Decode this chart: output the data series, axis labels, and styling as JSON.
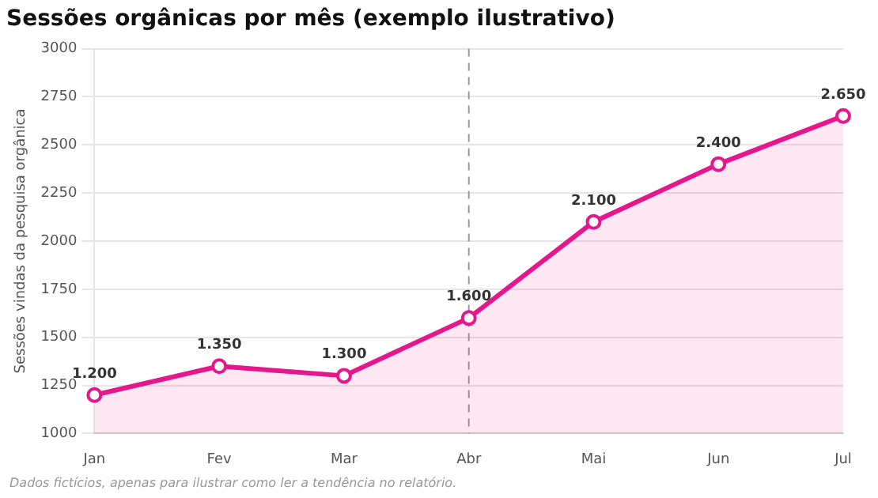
{
  "chart_data": {
    "type": "area",
    "title": "Sessões orgânicas por mês (exemplo ilustrativo)",
    "ylabel": "Sessões vindas da pesquisa orgânica",
    "categories": [
      "Jan",
      "Fev",
      "Mar",
      "Abr",
      "Mai",
      "Jun",
      "Jul"
    ],
    "series": [
      {
        "color": "#e5178c",
        "values": [
          1200,
          1350,
          1300,
          1600,
          2100,
          2400,
          2650
        ],
        "value_labels": [
          "1.200",
          "1.350",
          "1.300",
          "1.600",
          "2.100",
          "2.400",
          "2.650"
        ]
      }
    ],
    "ylim": [
      1000,
      3000
    ],
    "yticks": [
      1000,
      1250,
      1500,
      1750,
      2000,
      2250,
      2500,
      2750,
      3000
    ],
    "grid": "y",
    "marker": "circle",
    "line_style": "solid",
    "ref_lines": [
      {
        "axis": "x",
        "value": "Abr",
        "color": "#999999",
        "line_style": "dashed"
      }
    ],
    "annotations": [
      "Dados fictícios, apenas para ilustrar como ler a tendência no relatório."
    ]
  }
}
